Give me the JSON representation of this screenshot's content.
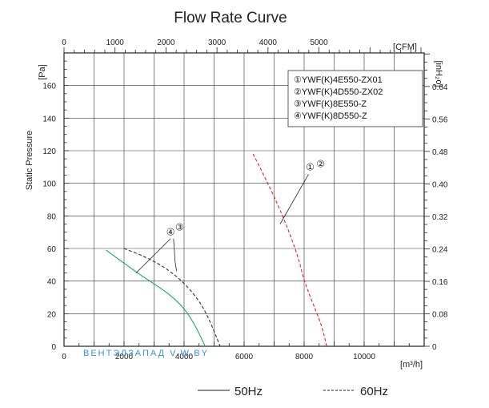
{
  "chart_data": {
    "type": "line",
    "title": "Flow Rate Curve",
    "ylabel": "Static Pressure",
    "y_unit_left": "[Pa]",
    "y_unit_right": "[inH₂o]",
    "x_unit_bottom": "[m³/h]",
    "x_unit_top": "[CFM]",
    "xlim": [
      0,
      12000
    ],
    "ylim": [
      0,
      180
    ],
    "grid": true,
    "x_ticks": [
      0,
      2000,
      4000,
      6000,
      8000,
      10000
    ],
    "x_tick_labels": [
      "0",
      "2000",
      "4000",
      "6000",
      "8000",
      "10000"
    ],
    "y_ticks": [
      0,
      20,
      40,
      60,
      80,
      100,
      120,
      140,
      160
    ],
    "y_tick_labels": [
      "0",
      "20",
      "40",
      "60",
      "80",
      "100",
      "120",
      "140",
      "160"
    ],
    "top_ticks": [
      0,
      1000,
      2000,
      3000,
      4000,
      5000
    ],
    "top_tick_labels": [
      "0",
      "1000",
      "2000",
      "3000",
      "4000",
      "5000"
    ],
    "right_ticks": [
      0,
      0.08,
      0.16,
      0.24,
      0.32,
      0.4,
      0.48,
      0.56,
      0.64
    ],
    "right_tick_labels": [
      "0",
      "0.08",
      "0.16",
      "0.24",
      "0.32",
      "0.40",
      "0.48",
      "0.56",
      "0.64"
    ],
    "legend_items": [
      "①YWF(K)4E550-ZX01",
      "②YWF(K)4D550-ZX02",
      "③YWF(K)8E550-Z",
      "④YWF(K)8D550-Z"
    ],
    "legend_placement": "top-right",
    "frequency_legend": [
      {
        "style": "solid",
        "label": "50Hz"
      },
      {
        "style": "dashed",
        "label": "60Hz"
      }
    ],
    "series": [
      {
        "name": "①②",
        "style": "dashed",
        "color": "#e0242a",
        "x": [
          6300,
          6600,
          7000,
          7400,
          7800,
          8000,
          8300,
          8600,
          8750
        ],
        "y": [
          118,
          107,
          92,
          75,
          55,
          40,
          26,
          12,
          0
        ]
      },
      {
        "name": "③",
        "style": "solid",
        "color": "#1aa85a",
        "x": [
          1400,
          2000,
          2600,
          3200,
          3700,
          4100,
          4450,
          4700
        ],
        "y": [
          59,
          51,
          43,
          36,
          29,
          21,
          10,
          0
        ]
      },
      {
        "name": "④",
        "style": "dashed",
        "color": "#333333",
        "x": [
          2000,
          2700,
          3400,
          4000,
          4500,
          4800,
          5050,
          5200
        ],
        "y": [
          60,
          55,
          48,
          39,
          28,
          18,
          7,
          0
        ]
      }
    ],
    "annotations": [
      {
        "text": "①",
        "x": 8200,
        "y": 108
      },
      {
        "text": "②",
        "x": 8550,
        "y": 110
      },
      {
        "text": "④",
        "x": 3550,
        "y": 68
      },
      {
        "text": "③",
        "x": 3850,
        "y": 71
      }
    ],
    "watermark": {
      "text": "ВЕНТЭЛЗАПАД V.W.BY"
    }
  }
}
